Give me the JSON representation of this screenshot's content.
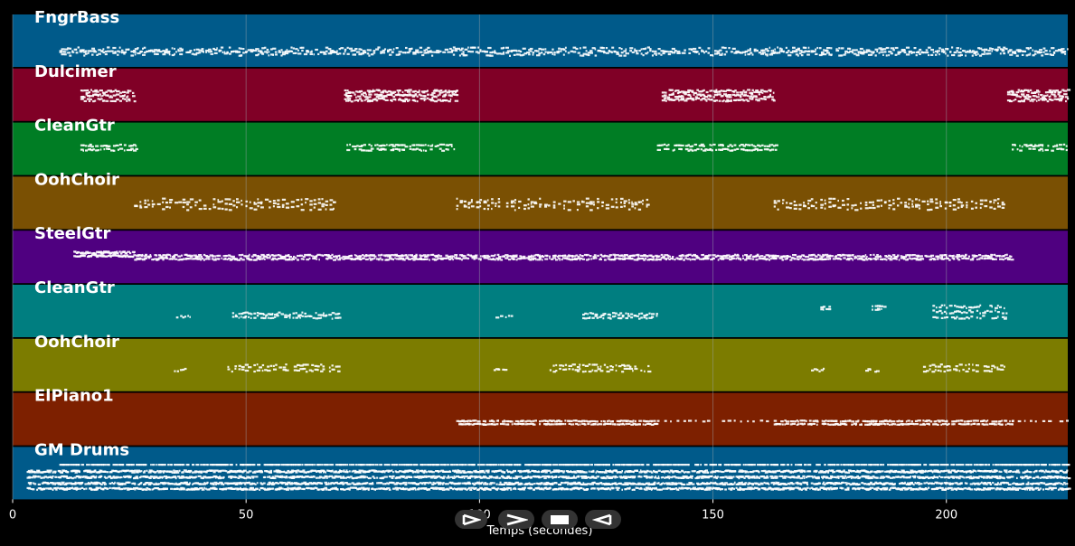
{
  "xaxis": {
    "label": "Temps (secondes)",
    "range": [
      0,
      226
    ],
    "ticks": [
      0,
      50,
      100,
      150,
      200
    ]
  },
  "colors": {
    "grid": "#9aa3aa",
    "note": "#ffffff",
    "background": "#000000"
  },
  "tracks": [
    {
      "name": "FngrBass",
      "color": "#005a8a",
      "segments": [
        {
          "s": 10,
          "e": 226,
          "rows": [
            0.72,
            0.66
          ],
          "density": 2.2,
          "jitter": 0.05
        }
      ]
    },
    {
      "name": "Dulcimer",
      "color": "#800026",
      "segments": [
        {
          "s": 14.5,
          "e": 26,
          "rows": [
            0.42,
            0.5,
            0.58
          ],
          "density": 3,
          "jitter": 0.03
        },
        {
          "s": 71,
          "e": 95,
          "rows": [
            0.42,
            0.5,
            0.58
          ],
          "density": 3,
          "jitter": 0.03
        },
        {
          "s": 139,
          "e": 163,
          "rows": [
            0.42,
            0.5,
            0.58
          ],
          "density": 3,
          "jitter": 0.03
        },
        {
          "s": 213,
          "e": 226,
          "rows": [
            0.42,
            0.5,
            0.58
          ],
          "density": 3,
          "jitter": 0.03
        }
      ]
    },
    {
      "name": "CleanGtr",
      "color": "#007d24",
      "segments": [
        {
          "s": 14.5,
          "e": 26.5,
          "rows": [
            0.42,
            0.5
          ],
          "density": 2.2,
          "jitter": 0.02
        },
        {
          "s": 71.5,
          "e": 94.5,
          "rows": [
            0.42,
            0.5
          ],
          "density": 2.2,
          "jitter": 0.02
        },
        {
          "s": 138,
          "e": 163.5,
          "rows": [
            0.42,
            0.5
          ],
          "density": 2.2,
          "jitter": 0.02
        },
        {
          "s": 214,
          "e": 226,
          "rows": [
            0.42,
            0.5
          ],
          "density": 2.2,
          "jitter": 0.02
        }
      ]
    },
    {
      "name": "OohChoir",
      "color": "#7a5003",
      "segments": [
        {
          "s": 26,
          "e": 69,
          "rows": [
            0.5,
            0.58,
            0.44
          ],
          "density": 1.1,
          "jitter": 0.04
        },
        {
          "s": 95,
          "e": 136,
          "rows": [
            0.5,
            0.58,
            0.44
          ],
          "density": 1.1,
          "jitter": 0.04
        },
        {
          "s": 163,
          "e": 212,
          "rows": [
            0.5,
            0.58,
            0.44
          ],
          "density": 1.1,
          "jitter": 0.04
        }
      ]
    },
    {
      "name": "SteelGtr",
      "color": "#4f0080",
      "segments": [
        {
          "s": 13,
          "e": 26,
          "rows": [
            0.4,
            0.46
          ],
          "density": 4,
          "jitter": 0.02
        },
        {
          "s": 26,
          "e": 214,
          "rows": [
            0.46,
            0.52
          ],
          "density": 3,
          "jitter": 0.02
        }
      ]
    },
    {
      "name": "CleanGtr",
      "color": "#007e80",
      "segments": [
        {
          "s": 35,
          "e": 38,
          "rows": [
            0.6
          ],
          "density": 2,
          "jitter": 0.03
        },
        {
          "s": 47,
          "e": 70,
          "rows": [
            0.6,
            0.54
          ],
          "density": 1.8,
          "jitter": 0.03
        },
        {
          "s": 103,
          "e": 107,
          "rows": [
            0.6
          ],
          "density": 2,
          "jitter": 0.03
        },
        {
          "s": 122,
          "e": 138,
          "rows": [
            0.6,
            0.54
          ],
          "density": 1.8,
          "jitter": 0.03
        },
        {
          "s": 173,
          "e": 175,
          "rows": [
            0.4,
            0.46
          ],
          "density": 2,
          "jitter": 0.02
        },
        {
          "s": 184,
          "e": 187,
          "rows": [
            0.4,
            0.46
          ],
          "density": 2,
          "jitter": 0.02
        },
        {
          "s": 197,
          "e": 213,
          "rows": [
            0.6,
            0.4,
            0.5
          ],
          "density": 1.8,
          "jitter": 0.03
        }
      ]
    },
    {
      "name": "OohChoir",
      "color": "#7c7c00",
      "segments": [
        {
          "s": 34,
          "e": 37,
          "rows": [
            0.58
          ],
          "density": 2,
          "jitter": 0.03
        },
        {
          "s": 46,
          "e": 70,
          "rows": [
            0.58,
            0.5
          ],
          "density": 1.6,
          "jitter": 0.03
        },
        {
          "s": 103,
          "e": 106,
          "rows": [
            0.58
          ],
          "density": 2,
          "jitter": 0.03
        },
        {
          "s": 115,
          "e": 136,
          "rows": [
            0.58,
            0.5
          ],
          "density": 1.6,
          "jitter": 0.03
        },
        {
          "s": 171,
          "e": 174,
          "rows": [
            0.58
          ],
          "density": 2,
          "jitter": 0.03
        },
        {
          "s": 182,
          "e": 185,
          "rows": [
            0.58
          ],
          "density": 2,
          "jitter": 0.03
        },
        {
          "s": 195,
          "e": 213,
          "rows": [
            0.58,
            0.5
          ],
          "density": 1.6,
          "jitter": 0.03
        }
      ]
    },
    {
      "name": "ElPiano1",
      "color": "#7d2000",
      "segments": [
        {
          "s": 95,
          "e": 138,
          "rows": [
            0.52,
            0.58
          ],
          "density": 2.5,
          "jitter": 0.01
        },
        {
          "s": 138,
          "e": 163,
          "rows": [
            0.52
          ],
          "density": 0.8,
          "jitter": 0.01
        },
        {
          "s": 163,
          "e": 214,
          "rows": [
            0.52,
            0.58
          ],
          "density": 2.5,
          "jitter": 0.01
        },
        {
          "s": 214,
          "e": 226,
          "rows": [
            0.52
          ],
          "density": 0.8,
          "jitter": 0.01
        }
      ]
    },
    {
      "name": "GM Drums",
      "color": "#005a8a",
      "segments": [
        {
          "s": 10,
          "e": 226,
          "rows": [
            0.32
          ],
          "density": 2.5,
          "jitter": 0
        },
        {
          "s": 3,
          "e": 226,
          "rows": [
            0.45,
            0.56,
            0.68,
            0.78
          ],
          "density": 4,
          "jitter": 0.02
        }
      ]
    }
  ],
  "controls": [
    {
      "name": "play-button",
      "icon": "play-icon"
    },
    {
      "name": "forward-button",
      "icon": "forward-icon"
    },
    {
      "name": "stop-button",
      "icon": "stop-icon"
    },
    {
      "name": "back-button",
      "icon": "back-icon"
    }
  ]
}
